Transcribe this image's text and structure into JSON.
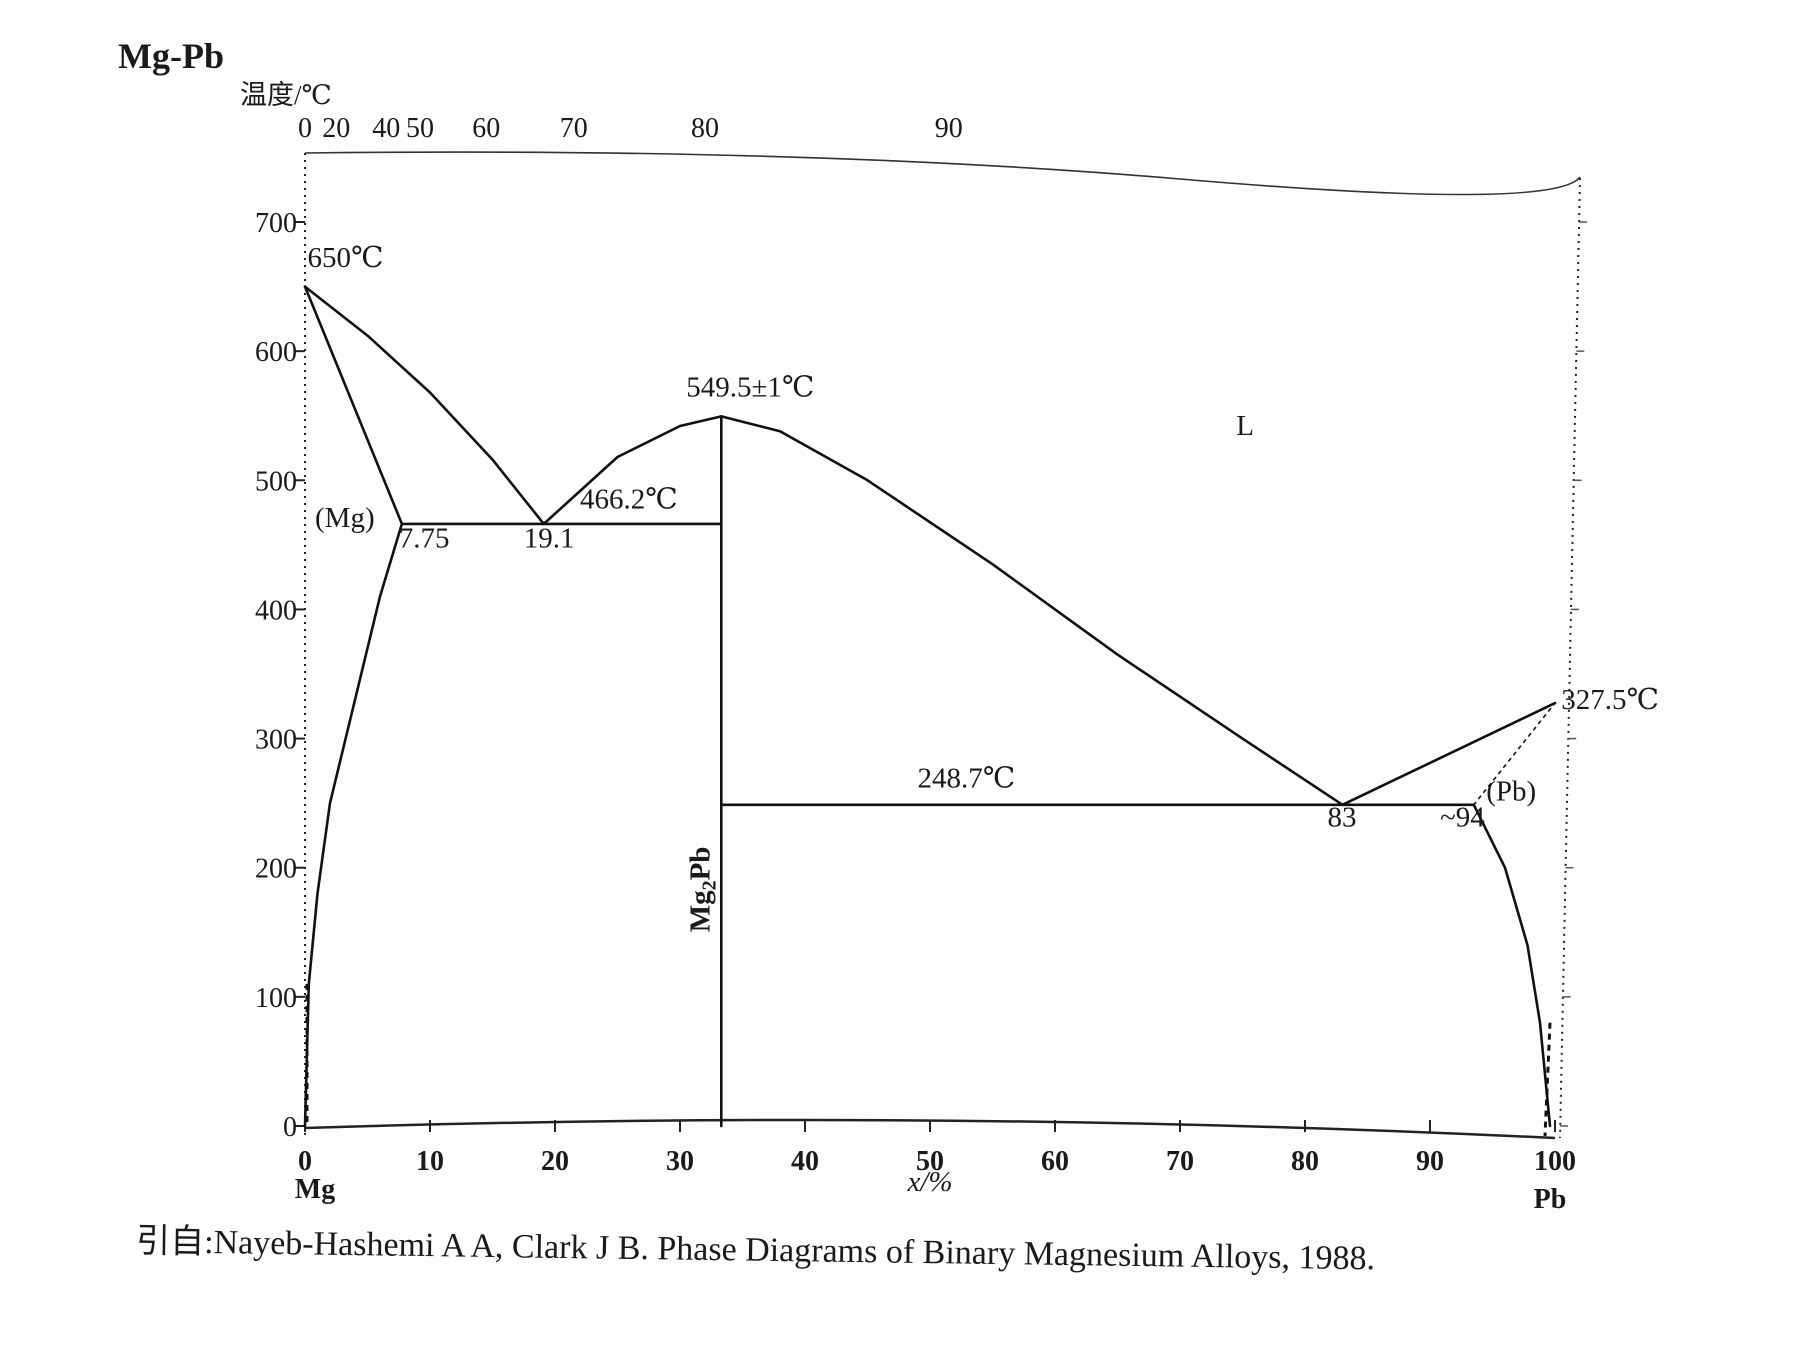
{
  "chart_data": {
    "type": "line",
    "title": "Mg-Pb",
    "ylabel": "温度/℃",
    "xlabel": "x/%",
    "left_element": "Mg",
    "right_element": "Pb",
    "xlim": [
      0,
      100
    ],
    "ylim": [
      0,
      700
    ],
    "x_ticks": [
      "0",
      "10",
      "20",
      "30",
      "40",
      "50",
      "60",
      "70",
      "80",
      "90",
      "100"
    ],
    "y_ticks": [
      "0",
      "100",
      "200",
      "300",
      "400",
      "500",
      "600",
      "700"
    ],
    "top_axis_ticks": [
      {
        "label": "0",
        "x": 0
      },
      {
        "label": "20",
        "x": 2.5
      },
      {
        "label": "40",
        "x": 6.5
      },
      {
        "label": "50",
        "x": 9.2
      },
      {
        "label": "60",
        "x": 14.5
      },
      {
        "label": "70",
        "x": 21.5
      },
      {
        "label": "80",
        "x": 32
      },
      {
        "label": "90",
        "x": 51.5
      }
    ],
    "series": [
      {
        "name": "liquidus Mg side",
        "x": [
          0,
          5,
          10,
          15,
          19.1
        ],
        "y": [
          650,
          612,
          568,
          516,
          466.2
        ]
      },
      {
        "name": "(Mg) solidus",
        "x": [
          0,
          7.75
        ],
        "y": [
          650,
          466.2
        ]
      },
      {
        "name": "(Mg) solvus",
        "x": [
          7.75,
          6,
          4,
          2,
          1,
          0.3,
          0
        ],
        "y": [
          466.2,
          410,
          330,
          250,
          180,
          110,
          0
        ]
      },
      {
        "name": "eutectic Mg-Mg2Pb",
        "x": [
          7.75,
          33.3
        ],
        "y": [
          466.2,
          466.2
        ]
      },
      {
        "name": "liquidus Mg2Pb (left)",
        "x": [
          19.1,
          25,
          30,
          33.3
        ],
        "y": [
          466.2,
          518,
          542,
          549.5
        ]
      },
      {
        "name": "liquidus Mg2Pb (right)",
        "x": [
          33.3,
          38,
          45,
          55,
          65,
          75,
          83
        ],
        "y": [
          549.5,
          538,
          500,
          435,
          365,
          300,
          248.7
        ]
      },
      {
        "name": "Mg2Pb compound",
        "x": [
          33.3,
          33.3
        ],
        "y": [
          0,
          549.5
        ]
      },
      {
        "name": "eutectic Mg2Pb-Pb",
        "x": [
          33.3,
          93.5
        ],
        "y": [
          248.7,
          248.7
        ]
      },
      {
        "name": "liquidus Pb side",
        "x": [
          83,
          100
        ],
        "y": [
          248.7,
          327.5
        ]
      },
      {
        "name": "(Pb) solidus",
        "x": [
          93.5,
          100
        ],
        "y": [
          248.7,
          327.5
        ]
      },
      {
        "name": "(Pb) solvus",
        "x": [
          93.5,
          96,
          97.8,
          98.8,
          99.6
        ],
        "y": [
          248.7,
          200,
          140,
          80,
          0
        ]
      }
    ],
    "annotations": [
      {
        "text": "650℃",
        "x": 0.2,
        "y": 665
      },
      {
        "text": "549.5±1℃",
        "x": 30.5,
        "y": 565
      },
      {
        "text": "466.2℃",
        "x": 22,
        "y": 478
      },
      {
        "text": "7.75",
        "x": 7.5,
        "y": 448
      },
      {
        "text": "19.1",
        "x": 17.5,
        "y": 448
      },
      {
        "text": "(Mg)",
        "x": 0.8,
        "y": 464
      },
      {
        "text": "L",
        "x": 74.5,
        "y": 535
      },
      {
        "text": "248.7℃",
        "x": 49,
        "y": 262
      },
      {
        "text": "83",
        "x": 81.8,
        "y": 232
      },
      {
        "text": "~94",
        "x": 90.8,
        "y": 232
      },
      {
        "text": "(Pb)",
        "x": 94.5,
        "y": 252
      },
      {
        "text": "327.5℃",
        "x": 100.5,
        "y": 323
      }
    ],
    "compound_label": "Mg2Pb",
    "citation": "引自:Nayeb-Hashemi A A, Clark J B. Phase Diagrams of Binary Magnesium Alloys, 1988."
  }
}
